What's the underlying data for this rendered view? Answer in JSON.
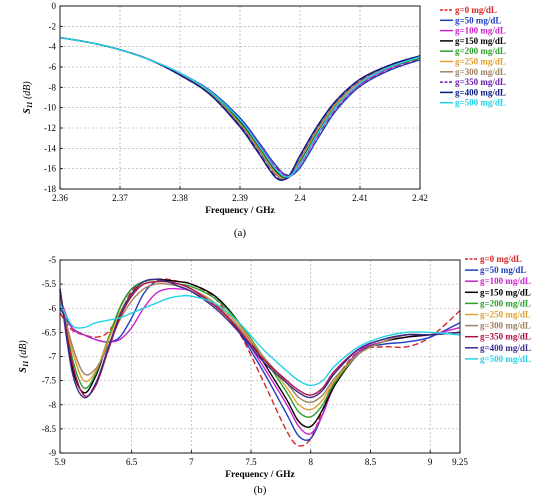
{
  "chart_data": [
    {
      "type": "line",
      "caption": "(a)",
      "xlabel": "Frequency / GHz",
      "ylabel_main": "S",
      "ylabel_sub": "11",
      "ylabel_unit": " (dB)",
      "xlim": [
        2.36,
        2.42
      ],
      "ylim": [
        -18,
        0
      ],
      "grid": true,
      "legend_position": "right",
      "xticks": [
        {
          "v": 2.36,
          "label": "2.36"
        },
        {
          "v": 2.37,
          "label": "2.37"
        },
        {
          "v": 2.38,
          "label": "2.38"
        },
        {
          "v": 2.39,
          "label": "2.39"
        },
        {
          "v": 2.4,
          "label": "2.4"
        },
        {
          "v": 2.41,
          "label": "2.41"
        },
        {
          "v": 2.42,
          "label": "2.42"
        }
      ],
      "yticks": [
        {
          "v": 0,
          "label": "0"
        },
        {
          "v": -2,
          "label": "-2"
        },
        {
          "v": -4,
          "label": "-4"
        },
        {
          "v": -6,
          "label": "-6"
        },
        {
          "v": -8,
          "label": "-8"
        },
        {
          "v": -10,
          "label": "-10"
        },
        {
          "v": -12,
          "label": "-12"
        },
        {
          "v": -14,
          "label": "-14"
        },
        {
          "v": -16,
          "label": "-16"
        },
        {
          "v": -18,
          "label": "-18"
        }
      ],
      "x": [
        2.36,
        2.365,
        2.37,
        2.375,
        2.38,
        2.385,
        2.39,
        2.393,
        2.396,
        2.398,
        2.4,
        2.403,
        2.406,
        2.41,
        2.415,
        2.42
      ],
      "series": [
        {
          "name": "g=0 mg/dL",
          "color": "#d62728",
          "dash": "6,3",
          "values": [
            -3.1,
            -3.6,
            -4.3,
            -5.3,
            -6.7,
            -8.5,
            -11.3,
            -13.6,
            -15.9,
            -16.6,
            -15.6,
            -12.7,
            -10.1,
            -7.8,
            -6.2,
            -5.2
          ]
        },
        {
          "name": "g=50 mg/dL",
          "color": "#1f3fbf",
          "dash": "",
          "values": [
            -3.1,
            -3.6,
            -4.3,
            -5.3,
            -6.6,
            -8.3,
            -11.0,
            -13.3,
            -15.7,
            -16.7,
            -15.9,
            -13.0,
            -10.3,
            -7.9,
            -6.3,
            -5.3
          ]
        },
        {
          "name": "g=100 mg/dL",
          "color": "#cc22cc",
          "dash": "",
          "values": [
            -3.1,
            -3.6,
            -4.3,
            -5.3,
            -6.6,
            -8.4,
            -11.2,
            -13.5,
            -16.0,
            -16.8,
            -15.6,
            -12.6,
            -10.0,
            -7.7,
            -6.1,
            -5.1
          ]
        },
        {
          "name": "g=150 mg/dL",
          "color": "#000000",
          "dash": "",
          "values": [
            -3.1,
            -3.6,
            -4.3,
            -5.3,
            -6.7,
            -8.5,
            -11.4,
            -13.8,
            -16.3,
            -16.9,
            -15.3,
            -12.3,
            -9.8,
            -7.6,
            -6.0,
            -5.1
          ]
        },
        {
          "name": "g=200 mg/dL",
          "color": "#2ca02c",
          "dash": "",
          "values": [
            -3.1,
            -3.6,
            -4.3,
            -5.3,
            -6.7,
            -8.5,
            -11.5,
            -13.9,
            -16.4,
            -16.9,
            -15.2,
            -12.2,
            -9.7,
            -7.5,
            -6.0,
            -5.1
          ]
        },
        {
          "name": "g=250 mg/dL",
          "color": "#e0a030",
          "dash": "",
          "values": [
            -3.1,
            -3.6,
            -4.3,
            -5.3,
            -6.7,
            -8.6,
            -11.6,
            -14.0,
            -16.5,
            -16.9,
            -15.1,
            -12.1,
            -9.6,
            -7.5,
            -5.9,
            -5.0
          ]
        },
        {
          "name": "g=300 mg/dL",
          "color": "#a08060",
          "dash": "",
          "values": [
            -3.1,
            -3.6,
            -4.3,
            -5.3,
            -6.7,
            -8.6,
            -11.7,
            -14.1,
            -16.6,
            -16.9,
            -15.0,
            -12.0,
            -9.5,
            -7.4,
            -5.9,
            -5.0
          ]
        },
        {
          "name": "g=350 mg/dL",
          "color": "#6a1fb0",
          "dash": "6,3",
          "values": [
            -3.1,
            -3.6,
            -4.3,
            -5.3,
            -6.8,
            -8.7,
            -11.8,
            -14.3,
            -16.8,
            -16.9,
            -14.8,
            -11.8,
            -9.4,
            -7.3,
            -5.8,
            -4.9
          ]
        },
        {
          "name": "g=400 mg/dL",
          "color": "#0a1a80",
          "dash": "",
          "values": [
            -3.1,
            -3.6,
            -4.3,
            -5.3,
            -6.8,
            -8.7,
            -11.9,
            -14.4,
            -16.9,
            -16.8,
            -14.7,
            -11.7,
            -9.3,
            -7.2,
            -5.8,
            -4.9
          ]
        },
        {
          "name": "g=500 mg/dL",
          "color": "#22d3e6",
          "dash": "",
          "values": [
            -3.1,
            -3.6,
            -4.3,
            -5.3,
            -6.6,
            -8.4,
            -11.2,
            -13.6,
            -16.1,
            -16.8,
            -15.5,
            -12.5,
            -9.9,
            -7.6,
            -6.0,
            -5.0
          ]
        }
      ]
    },
    {
      "type": "line",
      "caption": "(b)",
      "xlabel": "Frequency / GHz",
      "ylabel_main": "S",
      "ylabel_sub": "11",
      "ylabel_unit": " (dB)",
      "xlim": [
        5.9,
        9.25
      ],
      "ylim": [
        -9,
        -5
      ],
      "grid": true,
      "legend_position": "right",
      "xticks": [
        {
          "v": 5.9,
          "label": "5.9"
        },
        {
          "v": 6.5,
          "label": "6.5"
        },
        {
          "v": 7,
          "label": "7"
        },
        {
          "v": 7.5,
          "label": "7.5"
        },
        {
          "v": 8,
          "label": "8"
        },
        {
          "v": 8.5,
          "label": "8.5"
        },
        {
          "v": 9,
          "label": "9"
        },
        {
          "v": 9.25,
          "label": "9.25"
        }
      ],
      "yticks": [
        {
          "v": -5,
          "label": "-5"
        },
        {
          "v": -5.5,
          "label": "-5.5"
        },
        {
          "v": -6,
          "label": "-6"
        },
        {
          "v": -6.5,
          "label": "-6.5"
        },
        {
          "v": -7,
          "label": "-7"
        },
        {
          "v": -7.5,
          "label": "-7.5"
        },
        {
          "v": -8,
          "label": "-8"
        },
        {
          "v": -8.5,
          "label": "-8.5"
        },
        {
          "v": -9,
          "label": "-9"
        }
      ],
      "x": [
        5.9,
        6.0,
        6.1,
        6.2,
        6.3,
        6.4,
        6.5,
        6.6,
        6.7,
        6.8,
        6.9,
        7.0,
        7.2,
        7.4,
        7.6,
        7.8,
        7.9,
        8.0,
        8.1,
        8.2,
        8.4,
        8.6,
        8.8,
        9.0,
        9.25
      ],
      "series": [
        {
          "name": "g=0 mg/dL",
          "color": "#d62728",
          "dash": "6,3",
          "values": [
            -6.1,
            -6.45,
            -6.55,
            -6.6,
            -6.5,
            -6.1,
            -5.65,
            -5.45,
            -5.4,
            -5.4,
            -5.45,
            -5.5,
            -5.8,
            -6.5,
            -7.5,
            -8.55,
            -8.85,
            -8.7,
            -8.1,
            -7.5,
            -6.9,
            -6.8,
            -6.8,
            -6.6,
            -6.05
          ]
        },
        {
          "name": "g=50 mg/dL",
          "color": "#1f3fbf",
          "dash": "",
          "values": [
            -6.0,
            -6.4,
            -6.55,
            -6.65,
            -6.7,
            -6.6,
            -6.2,
            -5.7,
            -5.45,
            -5.45,
            -5.5,
            -5.6,
            -5.9,
            -6.5,
            -7.3,
            -8.2,
            -8.65,
            -8.7,
            -8.2,
            -7.6,
            -6.9,
            -6.75,
            -6.7,
            -6.6,
            -6.3
          ]
        },
        {
          "name": "g=100 mg/dL",
          "color": "#cc22cc",
          "dash": "",
          "values": [
            -5.8,
            -6.4,
            -6.55,
            -6.65,
            -6.7,
            -6.65,
            -6.4,
            -6.0,
            -5.7,
            -5.6,
            -5.6,
            -5.65,
            -5.95,
            -6.45,
            -7.2,
            -8.0,
            -8.45,
            -8.6,
            -8.2,
            -7.6,
            -6.9,
            -6.7,
            -6.6,
            -6.55,
            -6.4
          ]
        },
        {
          "name": "g=150 mg/dL",
          "color": "#000000",
          "dash": "",
          "values": [
            -5.6,
            -7.2,
            -7.75,
            -7.4,
            -6.7,
            -6.0,
            -5.6,
            -5.45,
            -5.4,
            -5.42,
            -5.45,
            -5.5,
            -5.75,
            -6.3,
            -7.1,
            -7.9,
            -8.35,
            -8.45,
            -8.1,
            -7.6,
            -6.95,
            -6.7,
            -6.6,
            -6.55,
            -6.5
          ]
        },
        {
          "name": "g=200 mg/dL",
          "color": "#2ca02c",
          "dash": "",
          "values": [
            -5.65,
            -7.0,
            -7.65,
            -7.35,
            -6.65,
            -6.0,
            -5.6,
            -5.45,
            -5.4,
            -5.45,
            -5.5,
            -5.55,
            -5.8,
            -6.3,
            -7.0,
            -7.75,
            -8.15,
            -8.25,
            -8.0,
            -7.55,
            -6.95,
            -6.7,
            -6.55,
            -6.55,
            -6.5
          ]
        },
        {
          "name": "g=250 mg/dL",
          "color": "#e0a030",
          "dash": "",
          "values": [
            -5.7,
            -6.85,
            -7.5,
            -7.3,
            -6.7,
            -6.1,
            -5.7,
            -5.5,
            -5.45,
            -5.45,
            -5.5,
            -5.6,
            -5.9,
            -6.35,
            -7.0,
            -7.65,
            -8.0,
            -8.1,
            -7.9,
            -7.5,
            -6.95,
            -6.7,
            -6.55,
            -6.55,
            -6.5
          ]
        },
        {
          "name": "g=300 mg/dL",
          "color": "#a08060",
          "dash": "",
          "values": [
            -5.75,
            -6.75,
            -7.35,
            -7.25,
            -6.8,
            -6.25,
            -5.85,
            -5.6,
            -5.5,
            -5.5,
            -5.55,
            -5.65,
            -5.95,
            -6.4,
            -7.0,
            -7.55,
            -7.85,
            -7.95,
            -7.8,
            -7.45,
            -6.95,
            -6.7,
            -6.55,
            -6.55,
            -6.5
          ]
        },
        {
          "name": "g=350 mg/dL",
          "color": "#b01040",
          "dash": "",
          "values": [
            -5.6,
            -7.1,
            -7.8,
            -7.6,
            -6.9,
            -6.2,
            -5.75,
            -5.5,
            -5.45,
            -5.45,
            -5.5,
            -5.6,
            -5.95,
            -6.45,
            -7.05,
            -7.5,
            -7.7,
            -7.8,
            -7.65,
            -7.3,
            -6.85,
            -6.65,
            -6.55,
            -6.55,
            -6.5
          ]
        },
        {
          "name": "g=400 mg/dL",
          "color": "#3a2a90",
          "dash": "",
          "values": [
            -5.6,
            -7.3,
            -7.85,
            -7.55,
            -6.85,
            -6.15,
            -5.7,
            -5.45,
            -5.4,
            -5.45,
            -5.55,
            -5.65,
            -6.0,
            -6.5,
            -7.1,
            -7.55,
            -7.75,
            -7.85,
            -7.7,
            -7.35,
            -6.85,
            -6.65,
            -6.55,
            -6.55,
            -6.5
          ]
        },
        {
          "name": "g=500 mg/dL",
          "color": "#22d3e6",
          "dash": "",
          "values": [
            -5.9,
            -6.35,
            -6.4,
            -6.3,
            -6.25,
            -6.2,
            -6.1,
            -6.0,
            -5.9,
            -5.8,
            -5.75,
            -5.75,
            -5.9,
            -6.3,
            -6.85,
            -7.3,
            -7.5,
            -7.6,
            -7.5,
            -7.2,
            -6.8,
            -6.6,
            -6.5,
            -6.5,
            -6.55
          ]
        }
      ]
    }
  ]
}
